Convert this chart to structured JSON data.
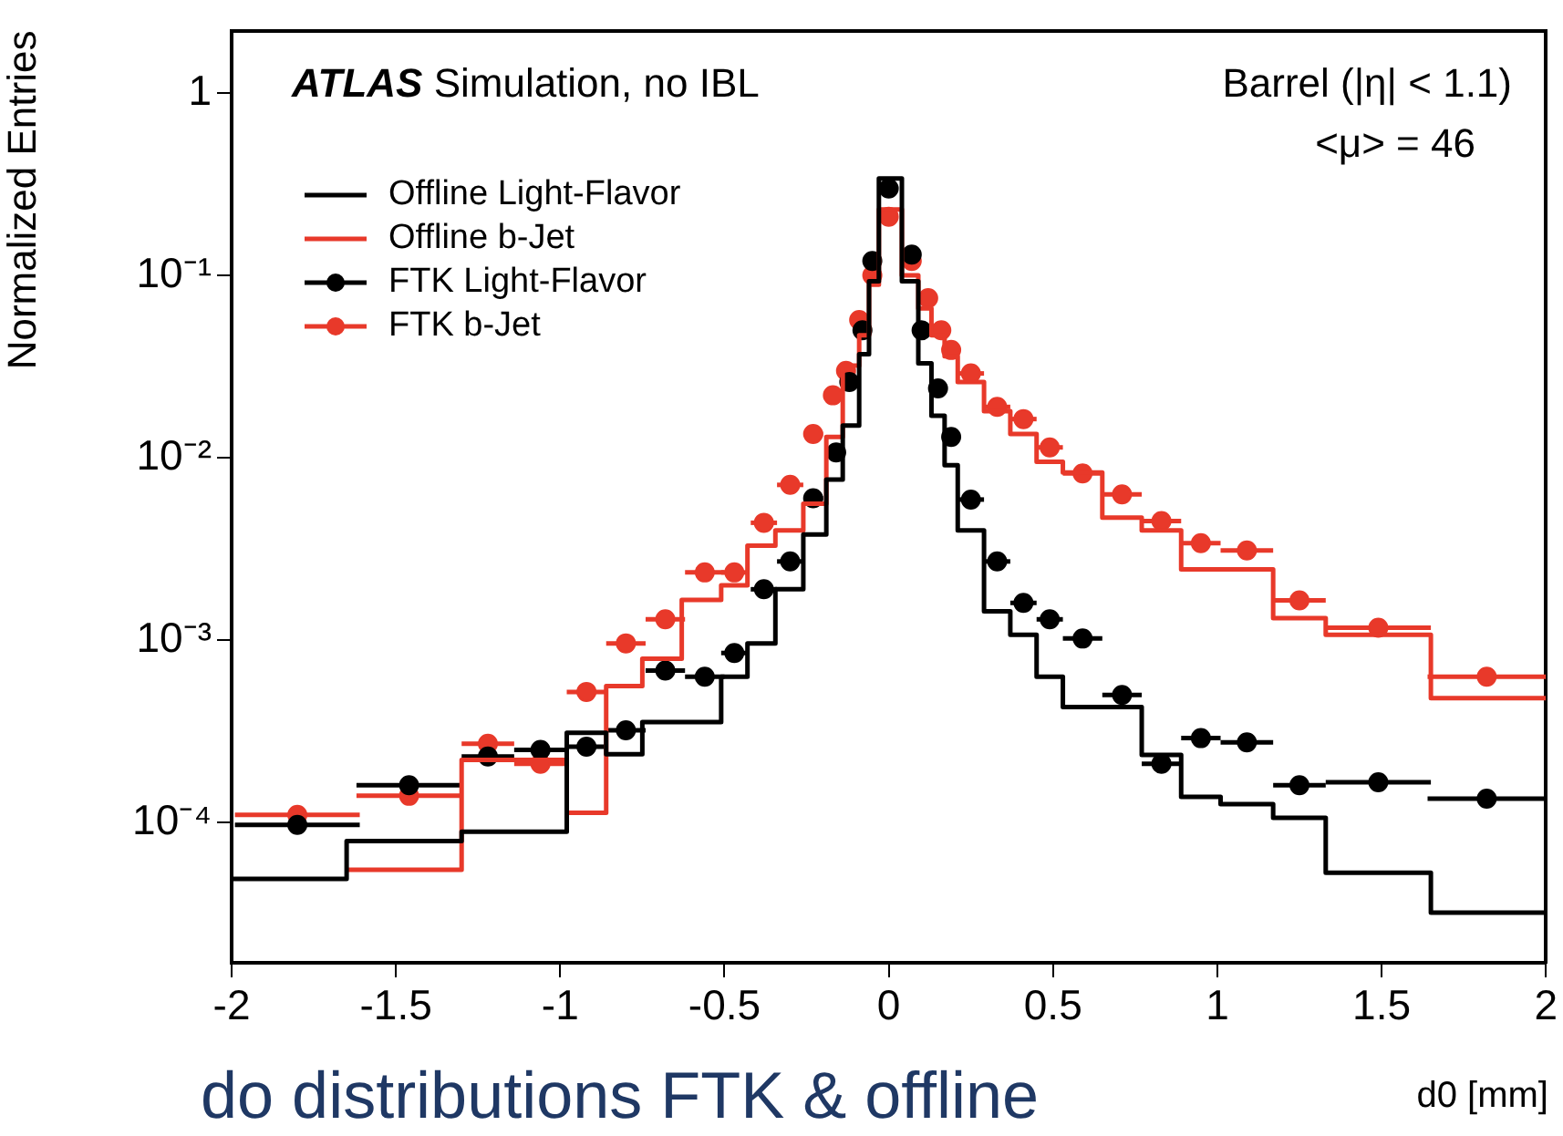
{
  "chart_data": {
    "type": "histogram",
    "xlabel": "d0 [mm]",
    "ylabel": "Normalized Entries",
    "annotations": [
      "ATLAS Simulation, no IBL",
      "Barrel (|η| < 1.1)",
      "<μ> = 46",
      "do distributions FTK & offline"
    ],
    "xlim": [
      -2,
      2
    ],
    "xticks": [
      -2,
      -1.5,
      -1,
      -0.5,
      0,
      0.5,
      1,
      1.5,
      2
    ],
    "ylim": [
      1.7e-05,
      2.2
    ],
    "yticks": [
      {
        "value": 0.0001,
        "label": "10⁻⁴"
      },
      {
        "value": 0.001,
        "label": "10⁻³"
      },
      {
        "value": 0.01,
        "label": "10⁻²"
      },
      {
        "value": 0.1,
        "label": "10⁻¹"
      },
      1
    ],
    "log": "y",
    "grid": false,
    "legend": "top left",
    "series": [
      {
        "name": "Offline Light-Flavor",
        "color": "#000000",
        "bins": [
          -2,
          -1.65,
          -1.3,
          -0.98,
          -0.86,
          -0.75,
          -0.63,
          -0.51,
          -0.43,
          -0.345,
          -0.26,
          -0.19,
          -0.14,
          -0.09,
          -0.06,
          -0.03,
          0.04,
          0.09,
          0.13,
          0.17,
          0.21,
          0.29,
          0.37,
          0.45,
          0.53,
          0.65,
          0.77,
          0.89,
          1.01,
          1.17,
          1.33,
          1.65,
          2
        ],
        "values": [
          4.9e-05,
          7.9e-05,
          8.9e-05,
          0.00031,
          0.000237,
          0.000355,
          0.000355,
          0.00063,
          0.00096,
          0.0019,
          0.0038,
          0.0076,
          0.015,
          0.037,
          0.093,
          0.34,
          0.093,
          0.033,
          0.017,
          0.0091,
          0.004,
          0.00144,
          0.00107,
          0.00063,
          0.00043,
          0.00043,
          0.000235,
          0.000138,
          0.000126,
          0.000106,
          5.3e-05,
          3.2e-05
        ]
      },
      {
        "name": "Offline b-Jet",
        "color": "#e8392a",
        "bins": [
          -1.65,
          -1.3,
          -0.98,
          -0.86,
          -0.75,
          -0.63,
          -0.51,
          -0.43,
          -0.345,
          -0.26,
          -0.19,
          -0.14,
          -0.09,
          -0.06,
          -0.03,
          0.04,
          0.09,
          0.13,
          0.17,
          0.21,
          0.29,
          0.37,
          0.45,
          0.53,
          0.65,
          0.77,
          0.89,
          1.01,
          1.17,
          1.33,
          1.65,
          2
        ],
        "values": [
          5.5e-05,
          0.00022,
          0.000113,
          0.00056,
          0.00079,
          0.00166,
          0.002,
          0.0033,
          0.004,
          0.0056,
          0.013,
          0.032,
          0.047,
          0.089,
          0.23,
          0.1,
          0.066,
          0.047,
          0.036,
          0.026,
          0.018,
          0.0135,
          0.0095,
          0.0083,
          0.0047,
          0.004,
          0.00244,
          0.00244,
          0.00132,
          0.00107,
          0.00048
        ]
      },
      {
        "name": "FTK Light-Flavor",
        "type": "scatter",
        "marker": "circle",
        "color": "#000000",
        "x": [
          -1.8,
          -1.46,
          -1.22,
          -1.06,
          -0.92,
          -0.8,
          -0.68,
          -0.56,
          -0.47,
          -0.38,
          -0.3,
          -0.23,
          -0.16,
          -0.12,
          -0.08,
          -0.05,
          0,
          0.07,
          0.1,
          0.15,
          0.19,
          0.25,
          0.33,
          0.41,
          0.49,
          0.59,
          0.71,
          0.83,
          0.95,
          1.09,
          1.25,
          1.49,
          1.82
        ],
        "values": [
          9.7e-05,
          0.00016,
          0.00023,
          0.00025,
          0.00026,
          0.00032,
          0.00068,
          0.00063,
          0.00085,
          0.0019,
          0.0027,
          0.006,
          0.0107,
          0.026,
          0.05,
          0.12,
          0.3,
          0.13,
          0.05,
          0.024,
          0.013,
          0.0059,
          0.0027,
          0.0016,
          0.0013,
          0.00102,
          0.0005,
          0.00021,
          0.00029,
          0.000275,
          0.00016,
          0.000166,
          0.000135
        ],
        "xerrors": [
          0.19,
          0.16,
          0.08,
          0.08,
          0.06,
          0.06,
          0.06,
          0.06,
          0.04,
          0.04,
          0.04,
          0.03,
          0.02,
          0.02,
          0.02,
          0.02,
          0.02,
          0.02,
          0.02,
          0.02,
          0.02,
          0.04,
          0.04,
          0.04,
          0.04,
          0.06,
          0.06,
          0.06,
          0.06,
          0.08,
          0.08,
          0.16,
          0.18
        ]
      },
      {
        "name": "FTK b-Jet",
        "type": "scatter",
        "marker": "circle",
        "color": "#e8392a",
        "x": [
          -1.8,
          -1.46,
          -1.22,
          -1.06,
          -0.92,
          -0.8,
          -0.68,
          -0.56,
          -0.47,
          -0.38,
          -0.3,
          -0.23,
          -0.17,
          -0.13,
          -0.09,
          -0.05,
          0,
          0.07,
          0.12,
          0.16,
          0.19,
          0.25,
          0.33,
          0.41,
          0.49,
          0.59,
          0.71,
          0.83,
          0.95,
          1.09,
          1.25,
          1.49,
          1.82
        ],
        "values": [
          0.00011,
          0.00014,
          0.00027,
          0.00021,
          0.00052,
          0.00096,
          0.0013,
          0.00235,
          0.00235,
          0.0044,
          0.0071,
          0.0135,
          0.022,
          0.03,
          0.057,
          0.1,
          0.21,
          0.12,
          0.075,
          0.05,
          0.039,
          0.029,
          0.019,
          0.0163,
          0.0114,
          0.0082,
          0.0063,
          0.0045,
          0.0034,
          0.0031,
          0.00165,
          0.00117,
          0.00063
        ],
        "xerrors": [
          0.19,
          0.16,
          0.08,
          0.08,
          0.06,
          0.06,
          0.06,
          0.06,
          0.04,
          0.04,
          0.04,
          0.03,
          0.02,
          0.02,
          0.02,
          0.02,
          0.02,
          0.02,
          0.02,
          0.02,
          0.02,
          0.04,
          0.04,
          0.04,
          0.04,
          0.06,
          0.06,
          0.06,
          0.06,
          0.08,
          0.08,
          0.16,
          0.18
        ]
      }
    ]
  }
}
